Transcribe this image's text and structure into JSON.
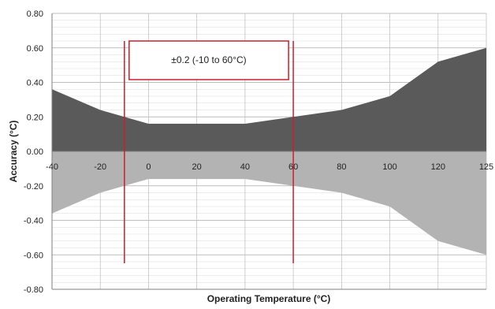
{
  "chart_data": {
    "type": "area",
    "xlabel": "Operating Temperature (°C)",
    "ylabel": "Accuracy (°C)",
    "x_ticks": [
      "-40",
      "-20",
      "0",
      "20",
      "40",
      "60",
      "80",
      "100",
      "120",
      "125"
    ],
    "y_ticks": [
      "0.80",
      "0.60",
      "0.40",
      "0.20",
      "0.00",
      "-0.20",
      "-0.40",
      "-0.60",
      "-0.80"
    ],
    "ylim": [
      -0.8,
      0.8
    ],
    "grid": true,
    "legend": "none",
    "series": [
      {
        "color": "#5a5a5a",
        "x": [
          -40,
          -20,
          -10,
          0,
          20,
          40,
          60,
          80,
          100,
          120,
          125
        ],
        "values": [
          0.36,
          0.24,
          0.2,
          0.16,
          0.16,
          0.16,
          0.2,
          0.24,
          0.32,
          0.52,
          0.6
        ]
      },
      {
        "color": "#b3b3b3",
        "x": [
          -40,
          -20,
          -10,
          0,
          20,
          40,
          60,
          80,
          100,
          120,
          125
        ],
        "values": [
          -0.36,
          -0.24,
          -0.2,
          -0.16,
          -0.16,
          -0.16,
          -0.2,
          -0.24,
          -0.32,
          -0.52,
          -0.6
        ]
      }
    ],
    "annotation": {
      "text": "±0.2 (-10 to 60°C)",
      "x_range": [
        -10,
        60
      ],
      "color": "#cc1f2b"
    }
  }
}
